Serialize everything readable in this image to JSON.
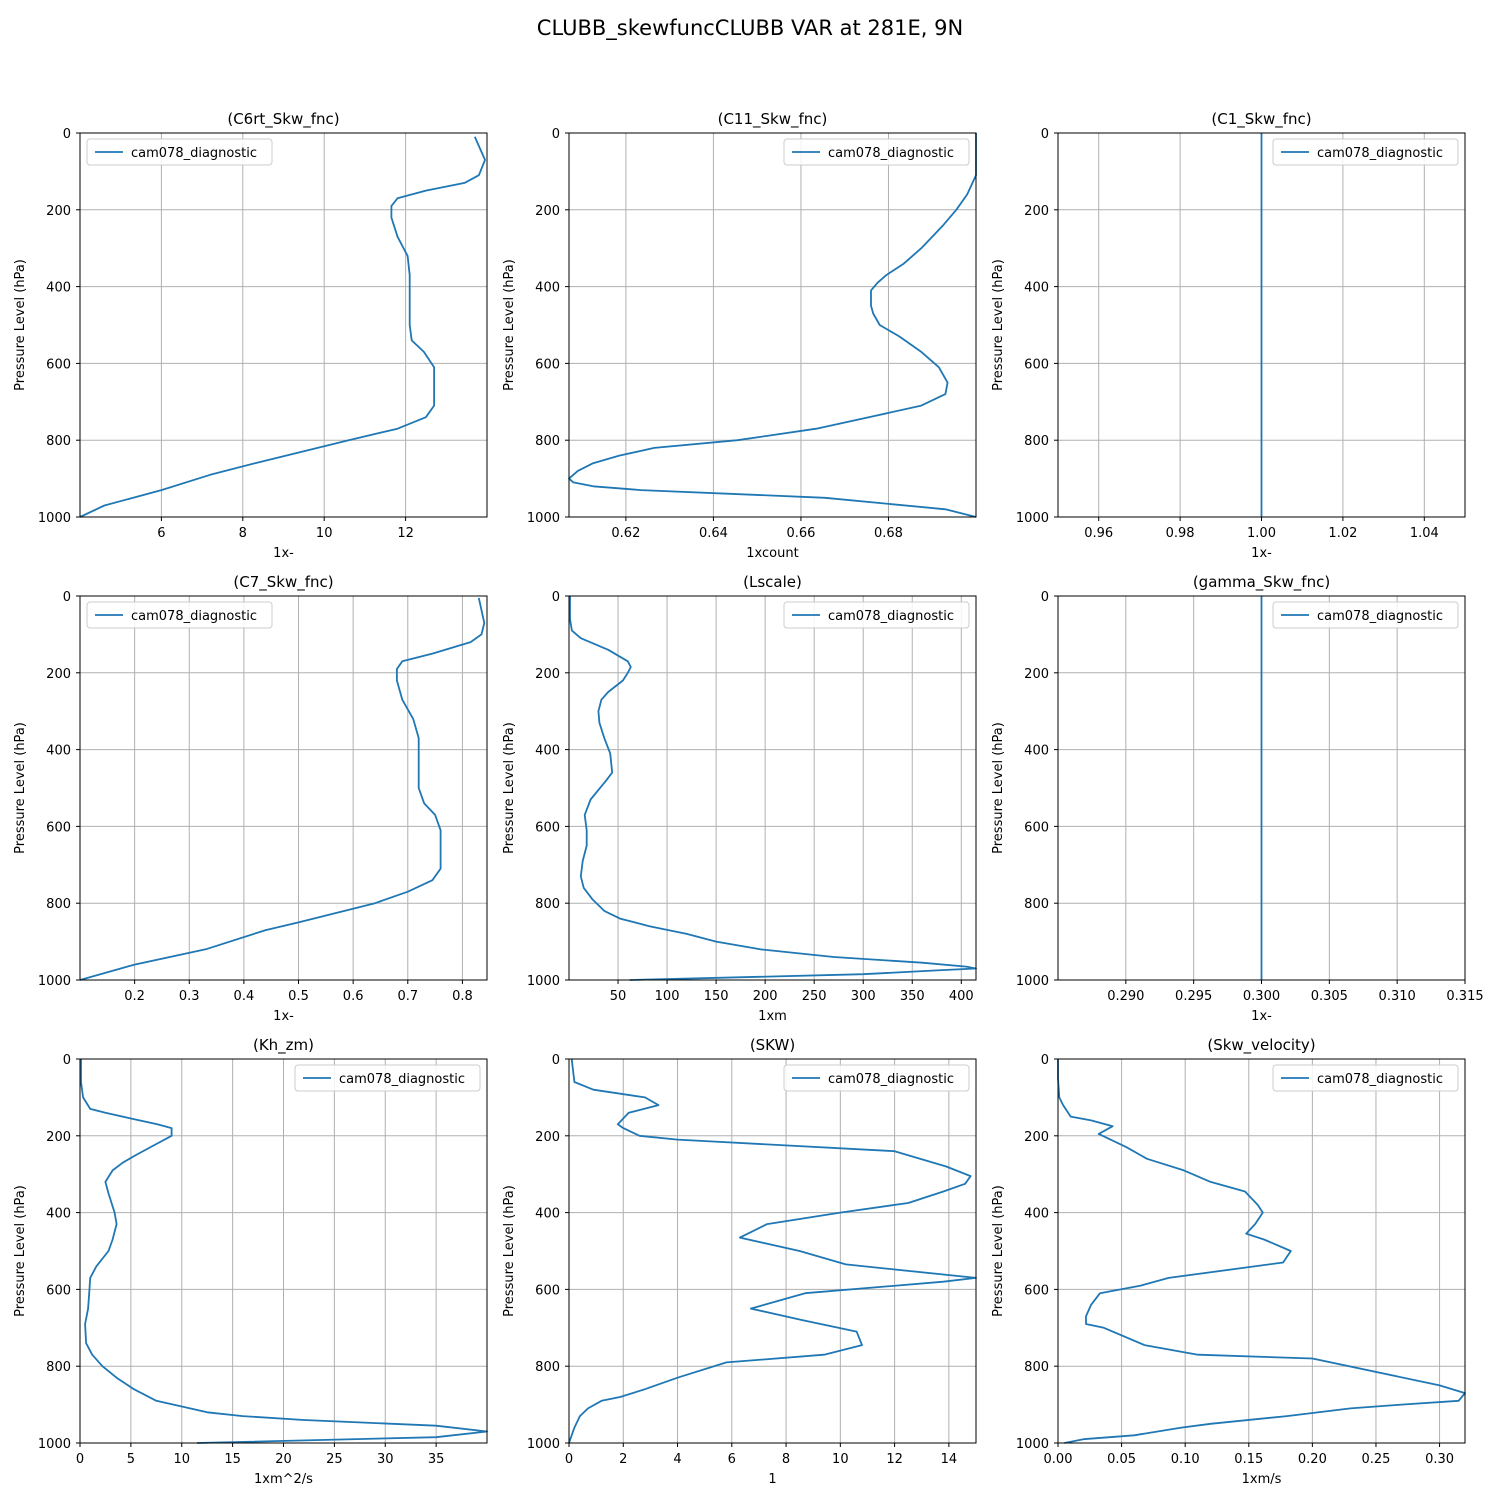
{
  "figure": {
    "title": "CLUBB_skewfuncCLUBB VAR at 281E, 9N"
  },
  "style": {
    "line_color": "#1f77b4",
    "grid_color": "#b0b0b0"
  },
  "chart_data": [
    {
      "type": "line",
      "title": "(C6rt_Skw_fnc)",
      "xlabel": "1x-",
      "ylabel": "Pressure Level (hPa)",
      "xlim": [
        4,
        14
      ],
      "xticks": [
        6,
        8,
        10,
        12
      ],
      "xtick_labels": [
        "6",
        "8",
        "10",
        "12"
      ],
      "ylim": [
        1000,
        0
      ],
      "yticks": [
        0,
        200,
        400,
        600,
        800,
        1000
      ],
      "grid": true,
      "legend": "upper-left",
      "series": [
        {
          "name": "cam078_diagnostic",
          "x": [
            13.7,
            13.95,
            13.8,
            13.45,
            12.5,
            11.8,
            11.65,
            11.65,
            11.8,
            12.05,
            12.1,
            12.1,
            12.1,
            12.15,
            12.45,
            12.7,
            12.7,
            12.5,
            11.8,
            10.6,
            8.3,
            7.2,
            6.0,
            4.6,
            4.0
          ],
          "y": [
            10,
            70,
            110,
            130,
            150,
            170,
            190,
            220,
            270,
            320,
            370,
            420,
            500,
            540,
            570,
            610,
            710,
            740,
            770,
            800,
            860,
            890,
            930,
            970,
            1000
          ]
        }
      ]
    },
    {
      "type": "line",
      "title": "(C11_Skw_fnc)",
      "xlabel": "1xcount",
      "ylabel": "Pressure Level (hPa)",
      "xlim": [
        0.607,
        0.7
      ],
      "xticks": [
        0.62,
        0.64,
        0.66,
        0.68
      ],
      "xtick_labels": [
        "0.62",
        "0.64",
        "0.66",
        "0.68"
      ],
      "ylim": [
        1000,
        0
      ],
      "yticks": [
        0,
        200,
        400,
        600,
        800,
        1000
      ],
      "grid": true,
      "legend": "upper-right",
      "series": [
        {
          "name": "cam078_diagnostic",
          "x": [
            0.7,
            0.7,
            0.698,
            0.6955,
            0.6925,
            0.6875,
            0.6835,
            0.6795,
            0.6775,
            0.676,
            0.676,
            0.6765,
            0.678,
            0.6825,
            0.6875,
            0.6915,
            0.6935,
            0.693,
            0.6875,
            0.6755,
            0.6635,
            0.6455,
            0.6265,
            0.6185,
            0.6125,
            0.609,
            0.607,
            0.608,
            0.6125,
            0.6235,
            0.6655,
            0.693,
            0.7
          ],
          "y": [
            0,
            110,
            160,
            200,
            240,
            300,
            340,
            370,
            390,
            410,
            450,
            470,
            500,
            530,
            570,
            610,
            650,
            680,
            710,
            740,
            770,
            800,
            820,
            840,
            860,
            880,
            900,
            910,
            920,
            930,
            950,
            980,
            1000
          ]
        }
      ]
    },
    {
      "type": "line",
      "title": "(C1_Skw_fnc)",
      "xlabel": "1x-",
      "ylabel": "Pressure Level (hPa)",
      "xlim": [
        0.95,
        1.05
      ],
      "xticks": [
        0.96,
        0.98,
        1.0,
        1.02,
        1.04
      ],
      "xtick_labels": [
        "0.96",
        "0.98",
        "1.00",
        "1.02",
        "1.04"
      ],
      "ylim": [
        1000,
        0
      ],
      "yticks": [
        0,
        200,
        400,
        600,
        800,
        1000
      ],
      "grid": true,
      "legend": "upper-right",
      "series": [
        {
          "name": "cam078_diagnostic",
          "x": [
            1.0,
            1.0
          ],
          "y": [
            0,
            1000
          ]
        }
      ]
    },
    {
      "type": "line",
      "title": "(C7_Skw_fnc)",
      "xlabel": "1x-",
      "ylabel": "Pressure Level (hPa)",
      "xlim": [
        0.1,
        0.845
      ],
      "xticks": [
        0.2,
        0.3,
        0.4,
        0.5,
        0.6,
        0.7,
        0.8
      ],
      "xtick_labels": [
        "0.2",
        "0.3",
        "0.4",
        "0.5",
        "0.6",
        "0.7",
        "0.8"
      ],
      "ylim": [
        1000,
        0
      ],
      "yticks": [
        0,
        200,
        400,
        600,
        800,
        1000
      ],
      "grid": true,
      "legend": "upper-left",
      "series": [
        {
          "name": "cam078_diagnostic",
          "x": [
            0.83,
            0.84,
            0.835,
            0.815,
            0.745,
            0.69,
            0.68,
            0.68,
            0.69,
            0.71,
            0.72,
            0.72,
            0.72,
            0.73,
            0.75,
            0.76,
            0.76,
            0.745,
            0.7,
            0.64,
            0.5,
            0.44,
            0.33,
            0.2,
            0.1
          ],
          "y": [
            5,
            70,
            100,
            120,
            150,
            170,
            190,
            220,
            270,
            320,
            370,
            420,
            500,
            540,
            570,
            610,
            710,
            740,
            770,
            800,
            850,
            870,
            920,
            960,
            1000
          ]
        }
      ]
    },
    {
      "type": "line",
      "title": "(Lscale)",
      "xlabel": "1xm",
      "ylabel": "Pressure Level (hPa)",
      "xlim": [
        0,
        415
      ],
      "xticks": [
        50,
        100,
        150,
        200,
        250,
        300,
        350,
        400
      ],
      "xtick_labels": [
        "50",
        "100",
        "150",
        "200",
        "250",
        "300",
        "350",
        "400"
      ],
      "ylim": [
        1000,
        0
      ],
      "yticks": [
        0,
        200,
        400,
        600,
        800,
        1000
      ],
      "grid": true,
      "legend": "upper-right",
      "series": [
        {
          "name": "cam078_diagnostic",
          "x": [
            1,
            1,
            3,
            12,
            40,
            60,
            63,
            60,
            55,
            40,
            33,
            30,
            31,
            36,
            42,
            44,
            38,
            22,
            16,
            18,
            18,
            14,
            12,
            15,
            24,
            36,
            52,
            82,
            120,
            150,
            195,
            270,
            360,
            405,
            415,
            375,
            300,
            62
          ],
          "y": [
            0,
            60,
            90,
            110,
            140,
            170,
            185,
            200,
            220,
            250,
            270,
            300,
            330,
            370,
            410,
            460,
            480,
            530,
            570,
            610,
            650,
            690,
            730,
            760,
            790,
            820,
            840,
            860,
            880,
            900,
            920,
            940,
            955,
            965,
            970,
            975,
            985,
            1000
          ]
        }
      ]
    },
    {
      "type": "line",
      "title": "(gamma_Skw_fnc)",
      "xlabel": "1x-",
      "ylabel": "Pressure Level (hPa)",
      "xlim": [
        0.285,
        0.315
      ],
      "xticks": [
        0.29,
        0.295,
        0.3,
        0.305,
        0.31,
        0.315
      ],
      "xtick_labels": [
        "0.290",
        "0.295",
        "0.300",
        "0.305",
        "0.310",
        "0.315"
      ],
      "ylim": [
        1000,
        0
      ],
      "yticks": [
        0,
        200,
        400,
        600,
        800,
        1000
      ],
      "grid": true,
      "legend": "upper-right",
      "series": [
        {
          "name": "cam078_diagnostic",
          "x": [
            0.3,
            0.3
          ],
          "y": [
            0,
            1000
          ]
        }
      ]
    },
    {
      "type": "line",
      "title": "(Kh_zm)",
      "xlabel": "1xm^2/s",
      "ylabel": "Pressure Level (hPa)",
      "xlim": [
        0,
        40
      ],
      "xticks": [
        0,
        5,
        10,
        15,
        20,
        25,
        30,
        35
      ],
      "xtick_labels": [
        "0",
        "5",
        "10",
        "15",
        "20",
        "25",
        "30",
        "35"
      ],
      "ylim": [
        1000,
        0
      ],
      "yticks": [
        0,
        200,
        400,
        600,
        800,
        1000
      ],
      "grid": true,
      "legend": "upper-right",
      "series": [
        {
          "name": "cam078_diagnostic",
          "x": [
            0.1,
            0.1,
            0.3,
            1.0,
            2.5,
            5.0,
            7.6,
            9.0,
            9.0,
            7.6,
            5.5,
            4.2,
            3.2,
            2.5,
            2.8,
            3.4,
            3.6,
            3.2,
            2.8,
            1.6,
            1.0,
            0.9,
            0.8,
            0.5,
            0.6,
            1.2,
            2.2,
            3.6,
            5.3,
            7.5,
            10.0,
            12.5,
            16.0,
            22.0,
            35.0,
            40.0,
            35.0,
            11.5
          ],
          "y": [
            0,
            60,
            100,
            130,
            140,
            155,
            170,
            180,
            200,
            220,
            250,
            270,
            290,
            320,
            350,
            400,
            430,
            470,
            500,
            540,
            570,
            610,
            650,
            690,
            740,
            770,
            800,
            830,
            860,
            890,
            905,
            920,
            930,
            940,
            955,
            970,
            985,
            1000
          ]
        }
      ]
    },
    {
      "type": "line",
      "title": "(SKW)",
      "xlabel": "1",
      "ylabel": "Pressure Level (hPa)",
      "xlim": [
        0,
        15
      ],
      "xticks": [
        0,
        2,
        4,
        6,
        8,
        10,
        12,
        14
      ],
      "xtick_labels": [
        "0",
        "2",
        "4",
        "6",
        "8",
        "10",
        "12",
        "14"
      ],
      "ylim": [
        1000,
        0
      ],
      "yticks": [
        0,
        200,
        400,
        600,
        800,
        1000
      ],
      "grid": true,
      "legend": "upper-right",
      "series": [
        {
          "name": "cam078_diagnostic",
          "x": [
            0.1,
            0.2,
            0.9,
            2.8,
            3.3,
            2.2,
            1.8,
            2.0,
            2.6,
            4.0,
            12.0,
            13.9,
            14.8,
            14.6,
            13.8,
            12.5,
            10.0,
            7.3,
            6.3,
            8.5,
            10.2,
            15.0,
            13.8,
            8.7,
            6.7,
            8.6,
            10.6,
            10.8,
            9.4,
            5.8,
            4.0,
            2.8,
            1.9,
            1.2,
            0.7,
            0.4,
            0.2,
            0.0
          ],
          "y": [
            0,
            60,
            80,
            100,
            120,
            140,
            170,
            180,
            200,
            210,
            240,
            280,
            305,
            325,
            345,
            375,
            400,
            430,
            465,
            500,
            535,
            570,
            580,
            610,
            650,
            680,
            710,
            745,
            770,
            790,
            830,
            860,
            880,
            890,
            910,
            930,
            960,
            1000
          ]
        }
      ]
    },
    {
      "type": "line",
      "title": "(Skw_velocity)",
      "xlabel": "1xm/s",
      "ylabel": "Pressure Level (hPa)",
      "xlim": [
        0,
        0.32
      ],
      "xticks": [
        0.0,
        0.05,
        0.1,
        0.15,
        0.2,
        0.25,
        0.3
      ],
      "xtick_labels": [
        "0.00",
        "0.05",
        "0.10",
        "0.15",
        "0.20",
        "0.25",
        "0.30"
      ],
      "ylim": [
        1000,
        0
      ],
      "yticks": [
        0,
        200,
        400,
        600,
        800,
        1000
      ],
      "grid": true,
      "legend": "upper-right",
      "series": [
        {
          "name": "cam078_diagnostic",
          "x": [
            0.0,
            0.0,
            0.001,
            0.004,
            0.01,
            0.026,
            0.043,
            0.032,
            0.054,
            0.07,
            0.099,
            0.12,
            0.147,
            0.157,
            0.161,
            0.155,
            0.148,
            0.162,
            0.183,
            0.177,
            0.087,
            0.065,
            0.033,
            0.026,
            0.022,
            0.022,
            0.036,
            0.068,
            0.11,
            0.2,
            0.3,
            0.32,
            0.315,
            0.27,
            0.23,
            0.18,
            0.12,
            0.097,
            0.06,
            0.02,
            0.005
          ],
          "y": [
            0,
            50,
            100,
            120,
            150,
            160,
            175,
            195,
            230,
            260,
            290,
            320,
            345,
            380,
            400,
            430,
            455,
            470,
            500,
            530,
            570,
            590,
            610,
            640,
            670,
            690,
            700,
            745,
            770,
            780,
            850,
            870,
            890,
            900,
            910,
            930,
            950,
            960,
            980,
            990,
            1000
          ]
        }
      ]
    }
  ]
}
